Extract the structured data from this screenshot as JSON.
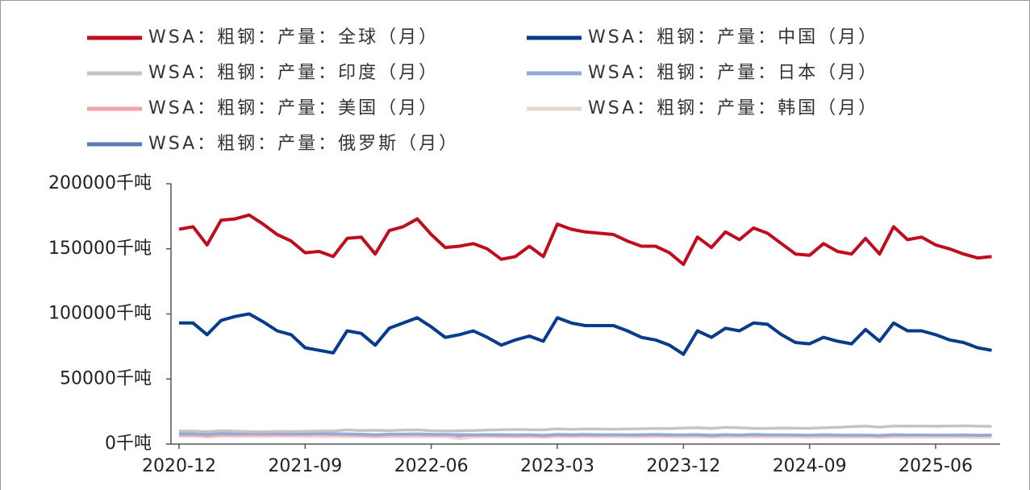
{
  "chart_data": {
    "type": "line",
    "categories": [
      "2020-12",
      "2021-01",
      "2021-02",
      "2021-03",
      "2021-04",
      "2021-05",
      "2021-06",
      "2021-07",
      "2021-08",
      "2021-09",
      "2021-10",
      "2021-11",
      "2021-12",
      "2022-01",
      "2022-02",
      "2022-03",
      "2022-04",
      "2022-05",
      "2022-06",
      "2022-07",
      "2022-08",
      "2022-09",
      "2022-10",
      "2022-11",
      "2022-12",
      "2023-01",
      "2023-02",
      "2023-03",
      "2023-04",
      "2023-05",
      "2023-06",
      "2023-07",
      "2023-08",
      "2023-09",
      "2023-10",
      "2023-11",
      "2023-12",
      "2024-01",
      "2024-02",
      "2024-03",
      "2024-04",
      "2024-05",
      "2024-06",
      "2024-07",
      "2024-08",
      "2024-09",
      "2024-10",
      "2024-11",
      "2024-12",
      "2025-01",
      "2025-02",
      "2025-03",
      "2025-04",
      "2025-05",
      "2025-06",
      "2025-07",
      "2025-08",
      "2025-09",
      "2025-10"
    ],
    "xticks": [
      "2020-12",
      "2021-09",
      "2022-06",
      "2023-03",
      "2023-12",
      "2024-09",
      "2025-06"
    ],
    "ylim": [
      0,
      200000
    ],
    "yticks": [
      {
        "value": 0,
        "label": "0千吨"
      },
      {
        "value": 50000,
        "label": "50000千吨"
      },
      {
        "value": 100000,
        "label": "100000千吨"
      },
      {
        "value": 150000,
        "label": "150000千吨"
      },
      {
        "value": 200000,
        "label": "200000千吨"
      }
    ],
    "series": [
      {
        "name": "WSA：粗钢：产量：全球（月）",
        "color": "#c00d1e",
        "values": [
          165000,
          167000,
          153000,
          172000,
          173000,
          176000,
          169000,
          161000,
          156000,
          147000,
          148000,
          144000,
          158000,
          159000,
          146000,
          164000,
          167000,
          173000,
          161000,
          151000,
          152000,
          154000,
          150000,
          142000,
          144000,
          152000,
          144000,
          169000,
          165000,
          163000,
          162000,
          161000,
          156000,
          152000,
          152000,
          147000,
          138000,
          159000,
          151000,
          163000,
          157000,
          166000,
          162000,
          154000,
          146000,
          145000,
          154000,
          148000,
          146000,
          158000,
          146000,
          167000,
          157000,
          159000,
          153000,
          150000,
          146000,
          143000,
          144000
        ]
      },
      {
        "name": "WSA：粗钢：产量：中国（月）",
        "color": "#063c8c",
        "values": [
          93000,
          93000,
          84000,
          95000,
          98000,
          100000,
          94000,
          87000,
          84000,
          74000,
          72000,
          70000,
          87000,
          85000,
          76000,
          89000,
          93000,
          97000,
          90000,
          82000,
          84000,
          87000,
          82000,
          76000,
          80000,
          83000,
          79000,
          97000,
          93000,
          91000,
          91000,
          91000,
          87000,
          82000,
          80000,
          76000,
          69000,
          87000,
          82000,
          89000,
          87000,
          93000,
          92000,
          84000,
          78000,
          77000,
          82000,
          79000,
          77000,
          88000,
          79000,
          93000,
          87000,
          87000,
          84000,
          80000,
          78000,
          74000,
          72000
        ]
      },
      {
        "name": "WSA：粗钢：产量：印度（月）",
        "color": "#c4c4c4",
        "values": [
          10000,
          10000,
          9500,
          10200,
          9900,
          9600,
          9500,
          9700,
          9600,
          9800,
          10000,
          10100,
          10900,
          10400,
          10600,
          10300,
          10800,
          10900,
          10200,
          10100,
          10200,
          10400,
          10800,
          11000,
          11200,
          11000,
          10900,
          11700,
          11300,
          11600,
          11500,
          11400,
          11600,
          11700,
          12000,
          11900,
          12300,
          12600,
          12000,
          12900,
          12500,
          12100,
          12000,
          12300,
          12200,
          12100,
          12600,
          12800,
          13400,
          13800,
          13000,
          13900,
          13800,
          13900,
          13700,
          13900,
          14000,
          13800,
          13600
        ]
      },
      {
        "name": "WSA：粗钢：产量：日本（月）",
        "color": "#93a9d9",
        "values": [
          8000,
          7900,
          7600,
          8200,
          8000,
          8100,
          8100,
          8100,
          7900,
          8000,
          8100,
          8000,
          7800,
          7600,
          7200,
          7700,
          7700,
          7800,
          7500,
          7400,
          7300,
          7200,
          7300,
          7200,
          7100,
          7200,
          6800,
          7400,
          7200,
          7400,
          7200,
          7300,
          7100,
          7200,
          7400,
          7200,
          7100,
          7300,
          6800,
          7300,
          7000,
          7400,
          7100,
          7100,
          7000,
          6800,
          7200,
          6900,
          6900,
          6900,
          6600,
          7200,
          7000,
          7000,
          6800,
          6800,
          6900,
          6700,
          6800
        ]
      },
      {
        "name": "WSA：粗钢：产量：美国（月）",
        "color": "#f2a2ab",
        "values": [
          7000,
          7100,
          6300,
          7300,
          7100,
          7400,
          7300,
          7400,
          7300,
          7200,
          7500,
          7300,
          7100,
          6800,
          6400,
          7200,
          7000,
          7100,
          6900,
          6900,
          6800,
          6700,
          6800,
          6500,
          6400,
          6700,
          6100,
          6900,
          6700,
          6900,
          6800,
          6900,
          6900,
          6700,
          7000,
          6700,
          6800,
          6900,
          6400,
          6900,
          6700,
          6900,
          6800,
          6900,
          6800,
          6600,
          6800,
          6600,
          6500,
          6700,
          6200,
          6900,
          6800,
          7000,
          6900,
          7000,
          7100,
          6900,
          7000
        ]
      },
      {
        "name": "WSA：粗钢：产量：韩国（月）",
        "color": "#e9d3d3",
        "values": [
          6000,
          6000,
          5500,
          6000,
          5900,
          6000,
          5900,
          6000,
          6000,
          5800,
          5900,
          5800,
          5800,
          5800,
          5400,
          5800,
          5600,
          5800,
          5700,
          5700,
          4200,
          5300,
          5600,
          5400,
          5300,
          5500,
          5200,
          5800,
          5600,
          5800,
          5600,
          5600,
          5600,
          5500,
          5700,
          5500,
          5500,
          5600,
          5300,
          5600,
          5500,
          5500,
          5400,
          5400,
          5500,
          5200,
          5400,
          5400,
          5300,
          5300,
          5100,
          5400,
          5300,
          5400,
          5300,
          5300,
          5300,
          5200,
          5300
        ]
      },
      {
        "name": "WSA：粗钢：产量：俄罗斯（月）",
        "color": "#5b7db3",
        "values": [
          6300,
          6500,
          6000,
          6600,
          6600,
          6800,
          6500,
          6700,
          6600,
          6500,
          6600,
          6400,
          6400,
          6500,
          6100,
          6600,
          6300,
          6500,
          5900,
          5800,
          5600,
          5700,
          5900,
          5900,
          5900,
          6200,
          5800,
          6700,
          6600,
          6600,
          6300,
          6400,
          6300,
          6300,
          6400,
          6200,
          6200,
          6300,
          6000,
          6400,
          6200,
          6400,
          6100,
          6100,
          6000,
          5700,
          6000,
          5800,
          5900,
          5900,
          5400,
          5800,
          5700,
          5800,
          5500,
          5600,
          5600,
          5300,
          5400
        ]
      }
    ]
  }
}
